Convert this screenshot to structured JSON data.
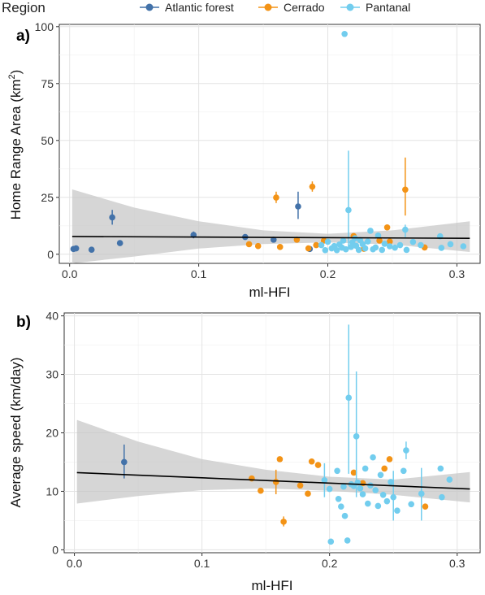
{
  "legend": {
    "title": "Region",
    "items": [
      {
        "label": "Atlantic forest",
        "color": "#4372A9"
      },
      {
        "label": "Cerrado",
        "color": "#F39316"
      },
      {
        "label": "Pantanal",
        "color": "#72CDEE"
      }
    ]
  },
  "chart_data": [
    {
      "type": "scatter",
      "panel_tag": "a)",
      "xlabel": "ml-HFI",
      "ylabel_main": "Home Range Area (km",
      "ylabel_sup": "2",
      "ylabel_end": ")",
      "xlim": [
        -0.008,
        0.318
      ],
      "ylim": [
        -4,
        101
      ],
      "xticks": [
        0.0,
        0.1,
        0.2,
        0.3
      ],
      "xtick_labels": [
        "0.0",
        "0.1",
        "0.2",
        "0.3"
      ],
      "yticks": [
        0,
        25,
        50,
        75,
        100
      ],
      "ytick_labels": [
        "0",
        "25",
        "50",
        "75",
        "100"
      ],
      "grid": true,
      "fit": {
        "x": [
          0.002,
          0.31
        ],
        "y": [
          7.8,
          7.0
        ]
      },
      "ci_band": {
        "x": [
          0.002,
          0.05,
          0.1,
          0.15,
          0.2,
          0.25,
          0.31
        ],
        "upper": [
          28.5,
          20.5,
          14.5,
          10.5,
          9.0,
          10.5,
          14.5
        ],
        "lower": [
          -5.0,
          -1.0,
          2.5,
          4.5,
          5.2,
          4.3,
          1.0
        ]
      },
      "series": [
        {
          "name": "Atlantic forest",
          "color": "#4372A9",
          "points": [
            {
              "x": 0.003,
              "y": 2.3
            },
            {
              "x": 0.005,
              "y": 2.6
            },
            {
              "x": 0.017,
              "y": 2.0
            },
            {
              "x": 0.033,
              "y": 16.2,
              "lo": 13.0,
              "hi": 19.5
            },
            {
              "x": 0.039,
              "y": 4.9
            },
            {
              "x": 0.096,
              "y": 8.5,
              "lo": 7.0,
              "hi": 10.0
            },
            {
              "x": 0.136,
              "y": 7.6
            },
            {
              "x": 0.158,
              "y": 6.4
            },
            {
              "x": 0.177,
              "y": 21.0,
              "lo": 15.5,
              "hi": 27.5
            },
            {
              "x": 0.186,
              "y": 2.3
            }
          ]
        },
        {
          "name": "Cerrado",
          "color": "#F39316",
          "points": [
            {
              "x": 0.139,
              "y": 4.4
            },
            {
              "x": 0.146,
              "y": 3.6
            },
            {
              "x": 0.16,
              "y": 24.9,
              "lo": 22.5,
              "hi": 27.5
            },
            {
              "x": 0.163,
              "y": 3.2
            },
            {
              "x": 0.176,
              "y": 6.4
            },
            {
              "x": 0.185,
              "y": 2.6
            },
            {
              "x": 0.188,
              "y": 29.7,
              "lo": 27.5,
              "hi": 32.0
            },
            {
              "x": 0.191,
              "y": 4.0
            },
            {
              "x": 0.197,
              "y": 6.0
            },
            {
              "x": 0.22,
              "y": 8.0
            },
            {
              "x": 0.228,
              "y": 2.4
            },
            {
              "x": 0.24,
              "y": 6.0
            },
            {
              "x": 0.246,
              "y": 11.8
            },
            {
              "x": 0.248,
              "y": 5.6
            },
            {
              "x": 0.26,
              "y": 28.4,
              "lo": 17.0,
              "hi": 42.5
            },
            {
              "x": 0.275,
              "y": 3.0
            }
          ]
        },
        {
          "name": "Pantanal",
          "color": "#72CDEE",
          "points": [
            {
              "x": 0.213,
              "y": 96.8
            },
            {
              "x": 0.216,
              "y": 19.4,
              "lo": 3.0,
              "hi": 45.5
            },
            {
              "x": 0.195,
              "y": 4.0
            },
            {
              "x": 0.198,
              "y": 1.8
            },
            {
              "x": 0.2,
              "y": 5.5
            },
            {
              "x": 0.203,
              "y": 2.6
            },
            {
              "x": 0.205,
              "y": 3.6
            },
            {
              "x": 0.207,
              "y": 1.8
            },
            {
              "x": 0.209,
              "y": 4.3
            },
            {
              "x": 0.211,
              "y": 2.9
            },
            {
              "x": 0.212,
              "y": 6.0
            },
            {
              "x": 0.214,
              "y": 2.2
            },
            {
              "x": 0.218,
              "y": 3.2
            },
            {
              "x": 0.219,
              "y": 5.2
            },
            {
              "x": 0.221,
              "y": 7.0
            },
            {
              "x": 0.222,
              "y": 3.7
            },
            {
              "x": 0.224,
              "y": 1.9
            },
            {
              "x": 0.225,
              "y": 6.2
            },
            {
              "x": 0.227,
              "y": 4.4
            },
            {
              "x": 0.229,
              "y": 2.6
            },
            {
              "x": 0.231,
              "y": 5.6
            },
            {
              "x": 0.233,
              "y": 10.3
            },
            {
              "x": 0.235,
              "y": 2.2
            },
            {
              "x": 0.237,
              "y": 3.0
            },
            {
              "x": 0.239,
              "y": 8.2
            },
            {
              "x": 0.242,
              "y": 1.9
            },
            {
              "x": 0.244,
              "y": 4.6
            },
            {
              "x": 0.248,
              "y": 3.5
            },
            {
              "x": 0.252,
              "y": 2.9
            },
            {
              "x": 0.256,
              "y": 4.0
            },
            {
              "x": 0.26,
              "y": 10.8,
              "lo": 7.5,
              "hi": 13.0
            },
            {
              "x": 0.261,
              "y": 1.9
            },
            {
              "x": 0.266,
              "y": 5.4
            },
            {
              "x": 0.272,
              "y": 4.0
            },
            {
              "x": 0.287,
              "y": 7.9
            },
            {
              "x": 0.288,
              "y": 2.8
            },
            {
              "x": 0.295,
              "y": 4.4
            },
            {
              "x": 0.305,
              "y": 3.5
            }
          ]
        }
      ]
    },
    {
      "type": "scatter",
      "panel_tag": "b)",
      "xlabel": "ml-HFI",
      "ylabel_main": "Average speed (km/day)",
      "ylabel_sup": "",
      "ylabel_end": "",
      "xlim": [
        -0.008,
        0.318
      ],
      "ylim": [
        -0.5,
        40.5
      ],
      "xticks": [
        0.0,
        0.1,
        0.2,
        0.3
      ],
      "xtick_labels": [
        "0.0",
        "0.1",
        "0.2",
        "0.3"
      ],
      "yticks": [
        0,
        10,
        20,
        30,
        40
      ],
      "ytick_labels": [
        "0",
        "10",
        "20",
        "30",
        "40"
      ],
      "grid": true,
      "fit": {
        "x": [
          0.002,
          0.31
        ],
        "y": [
          13.2,
          10.4
        ]
      },
      "ci_band": {
        "x": [
          0.002,
          0.05,
          0.1,
          0.15,
          0.2,
          0.25,
          0.31
        ],
        "upper": [
          22.2,
          18.5,
          15.5,
          13.7,
          12.5,
          12.0,
          13.3
        ],
        "lower": [
          7.9,
          9.2,
          10.2,
          10.5,
          10.1,
          9.4,
          8.1
        ]
      },
      "series": [
        {
          "name": "Atlantic forest",
          "color": "#4372A9",
          "points": [
            {
              "x": 0.039,
              "y": 15.0,
              "lo": 12.2,
              "hi": 18.0
            }
          ]
        },
        {
          "name": "Cerrado",
          "color": "#F39316",
          "points": [
            {
              "x": 0.139,
              "y": 12.2
            },
            {
              "x": 0.146,
              "y": 10.1
            },
            {
              "x": 0.158,
              "y": 11.6,
              "lo": 9.5,
              "hi": 13.7
            },
            {
              "x": 0.161,
              "y": 15.5
            },
            {
              "x": 0.164,
              "y": 4.8,
              "lo": 4.0,
              "hi": 5.7
            },
            {
              "x": 0.177,
              "y": 11.0
            },
            {
              "x": 0.183,
              "y": 9.6
            },
            {
              "x": 0.186,
              "y": 15.1
            },
            {
              "x": 0.191,
              "y": 14.5
            },
            {
              "x": 0.219,
              "y": 13.2
            },
            {
              "x": 0.226,
              "y": 11.4
            },
            {
              "x": 0.243,
              "y": 13.9
            },
            {
              "x": 0.247,
              "y": 15.5
            },
            {
              "x": 0.275,
              "y": 7.4
            }
          ]
        },
        {
          "name": "Pantanal",
          "color": "#72CDEE",
          "points": [
            {
              "x": 0.196,
              "y": 11.9,
              "lo": 9.0,
              "hi": 14.8
            },
            {
              "x": 0.2,
              "y": 10.4
            },
            {
              "x": 0.201,
              "y": 1.4
            },
            {
              "x": 0.206,
              "y": 13.5
            },
            {
              "x": 0.207,
              "y": 8.7
            },
            {
              "x": 0.209,
              "y": 7.4
            },
            {
              "x": 0.211,
              "y": 10.8
            },
            {
              "x": 0.212,
              "y": 5.8
            },
            {
              "x": 0.214,
              "y": 1.6
            },
            {
              "x": 0.215,
              "y": 26.0,
              "lo": 13.0,
              "hi": 38.5
            },
            {
              "x": 0.217,
              "y": 11.2
            },
            {
              "x": 0.219,
              "y": 10.9
            },
            {
              "x": 0.221,
              "y": 19.4,
              "lo": 9.0,
              "hi": 30.5
            },
            {
              "x": 0.222,
              "y": 11.5
            },
            {
              "x": 0.224,
              "y": 10.5
            },
            {
              "x": 0.226,
              "y": 9.5
            },
            {
              "x": 0.228,
              "y": 13.9
            },
            {
              "x": 0.23,
              "y": 7.9
            },
            {
              "x": 0.232,
              "y": 11.0
            },
            {
              "x": 0.234,
              "y": 15.8
            },
            {
              "x": 0.236,
              "y": 10.2
            },
            {
              "x": 0.238,
              "y": 7.5
            },
            {
              "x": 0.24,
              "y": 12.8
            },
            {
              "x": 0.242,
              "y": 9.4
            },
            {
              "x": 0.245,
              "y": 8.3
            },
            {
              "x": 0.248,
              "y": 11.6
            },
            {
              "x": 0.25,
              "y": 9.0,
              "lo": 5.0,
              "hi": 13.5
            },
            {
              "x": 0.253,
              "y": 6.7
            },
            {
              "x": 0.258,
              "y": 13.5
            },
            {
              "x": 0.26,
              "y": 17.0,
              "lo": 15.5,
              "hi": 18.5
            },
            {
              "x": 0.264,
              "y": 7.8
            },
            {
              "x": 0.272,
              "y": 9.6,
              "lo": 5.0,
              "hi": 14.0
            },
            {
              "x": 0.287,
              "y": 13.9
            },
            {
              "x": 0.288,
              "y": 9.0
            },
            {
              "x": 0.294,
              "y": 12.0
            }
          ]
        }
      ]
    }
  ]
}
